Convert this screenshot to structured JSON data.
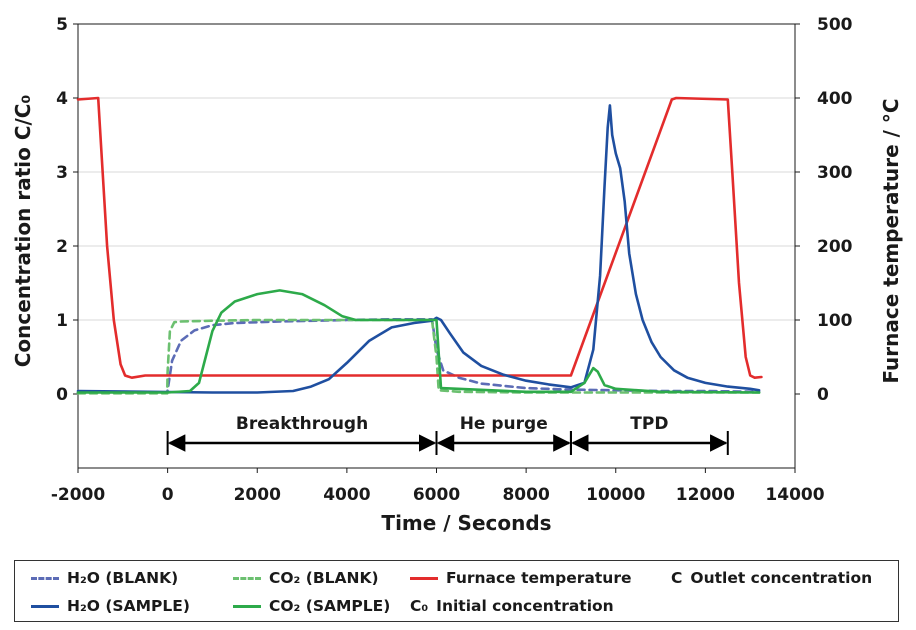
{
  "chart_data": {
    "type": "line",
    "xlabel": "Time / Seconds",
    "ylabel": "Concentration ratio C/C₀",
    "ylabel_right": "Furnace temperature / °C",
    "xlim": [
      -2000,
      14000
    ],
    "ylim": [
      -1,
      5
    ],
    "ylim_right": [
      -100,
      500
    ],
    "x_ticks": [
      "-2000",
      "0",
      "2000",
      "4000",
      "6000",
      "8000",
      "10000",
      "12000",
      "14000"
    ],
    "y_ticks": [
      "0",
      "1",
      "2",
      "3",
      "4",
      "5"
    ],
    "y_ticks_right": [
      "0",
      "100",
      "200",
      "300",
      "400",
      "500"
    ],
    "grid": "horizontal",
    "phases": [
      {
        "label": "Breakthrough",
        "start": 0,
        "end": 6000
      },
      {
        "label": "He purge",
        "start": 6000,
        "end": 9000
      },
      {
        "label": "TPD",
        "start": 9000,
        "end": 12500
      }
    ],
    "series": [
      {
        "name": "H₂O (BLANK)",
        "color": "#5c6cb6",
        "style": "dashed",
        "axis": "left",
        "x": [
          -2000,
          -10,
          0,
          100,
          300,
          600,
          1000,
          1500,
          2500,
          4000,
          5000,
          5900,
          6000,
          6150,
          6500,
          7000,
          8000,
          9000,
          10000,
          11000,
          12000,
          13200
        ],
        "y": [
          0.02,
          0.02,
          0.05,
          0.45,
          0.72,
          0.86,
          0.93,
          0.96,
          0.98,
          1.0,
          1.01,
          1.01,
          0.6,
          0.32,
          0.22,
          0.14,
          0.08,
          0.06,
          0.05,
          0.04,
          0.04,
          0.03
        ]
      },
      {
        "name": "CO₂ (BLANK)",
        "color": "#6cc070",
        "style": "dashed",
        "axis": "left",
        "x": [
          -2000,
          -10,
          0,
          50,
          150,
          300,
          1000,
          2000,
          4000,
          5000,
          5900,
          6000,
          6050,
          6500,
          8000,
          10000,
          13200
        ],
        "y": [
          0.01,
          0.01,
          0.3,
          0.85,
          0.97,
          0.98,
          0.99,
          1.0,
          1.0,
          1.0,
          1.0,
          0.5,
          0.05,
          0.03,
          0.02,
          0.02,
          0.02
        ]
      },
      {
        "name": "Furnace temperature",
        "color": "#e32c2c",
        "style": "solid",
        "axis": "right",
        "x": [
          -2000,
          -1550,
          -1480,
          -1350,
          -1200,
          -1050,
          -950,
          -800,
          -500,
          9000,
          11250,
          11350,
          12500,
          12600,
          12750,
          12900,
          13000,
          13100,
          13250
        ],
        "y": [
          398,
          400,
          330,
          200,
          100,
          40,
          25,
          22,
          25,
          25,
          398,
          400,
          398,
          300,
          150,
          50,
          25,
          22,
          23
        ]
      },
      {
        "name": "H₂O (SAMPLE)",
        "color": "#1f4fa0",
        "style": "solid",
        "axis": "left",
        "x": [
          -2000,
          1000,
          2000,
          2800,
          3200,
          3600,
          4000,
          4500,
          5000,
          5500,
          5900,
          6000,
          6100,
          6300,
          6600,
          7000,
          7500,
          8000,
          8500,
          9000,
          9300,
          9500,
          9650,
          9750,
          9820,
          9870,
          9920,
          10000,
          10100,
          10200,
          10300,
          10450,
          10600,
          10800,
          11000,
          11300,
          11600,
          12000,
          12500,
          13000,
          13200
        ],
        "y": [
          0.04,
          0.02,
          0.02,
          0.04,
          0.1,
          0.2,
          0.42,
          0.72,
          0.9,
          0.96,
          0.99,
          1.03,
          1.0,
          0.82,
          0.56,
          0.38,
          0.26,
          0.18,
          0.13,
          0.09,
          0.15,
          0.6,
          1.6,
          2.8,
          3.6,
          3.9,
          3.5,
          3.25,
          3.05,
          2.6,
          1.9,
          1.35,
          1.0,
          0.7,
          0.5,
          0.32,
          0.22,
          0.15,
          0.1,
          0.07,
          0.05
        ]
      },
      {
        "name": "CO₂ (SAMPLE)",
        "color": "#2daa4a",
        "style": "solid",
        "axis": "left",
        "x": [
          -2000,
          0,
          500,
          700,
          850,
          1000,
          1200,
          1500,
          2000,
          2500,
          3000,
          3500,
          3900,
          4200,
          5000,
          5900,
          6000,
          6100,
          8000,
          9000,
          9300,
          9500,
          9600,
          9750,
          10000,
          10500,
          11000,
          13200
        ],
        "y": [
          0.02,
          0.02,
          0.04,
          0.15,
          0.5,
          0.85,
          1.1,
          1.25,
          1.35,
          1.4,
          1.35,
          1.2,
          1.05,
          1.0,
          1.0,
          1.0,
          1.0,
          0.08,
          0.03,
          0.03,
          0.15,
          0.35,
          0.3,
          0.12,
          0.07,
          0.05,
          0.03,
          0.02
        ]
      }
    ]
  },
  "legend": {
    "h2o_blank": "H₂O (BLANK)",
    "co2_blank": "CO₂ (BLANK)",
    "furnace": "Furnace temperature",
    "c_symbol": "C",
    "c_desc": "Outlet concentration",
    "h2o_sample": "H₂O (SAMPLE)",
    "co2_sample": "CO₂ (SAMPLE)",
    "c0_symbol": "C₀",
    "c0_desc": "Initial concentration"
  }
}
